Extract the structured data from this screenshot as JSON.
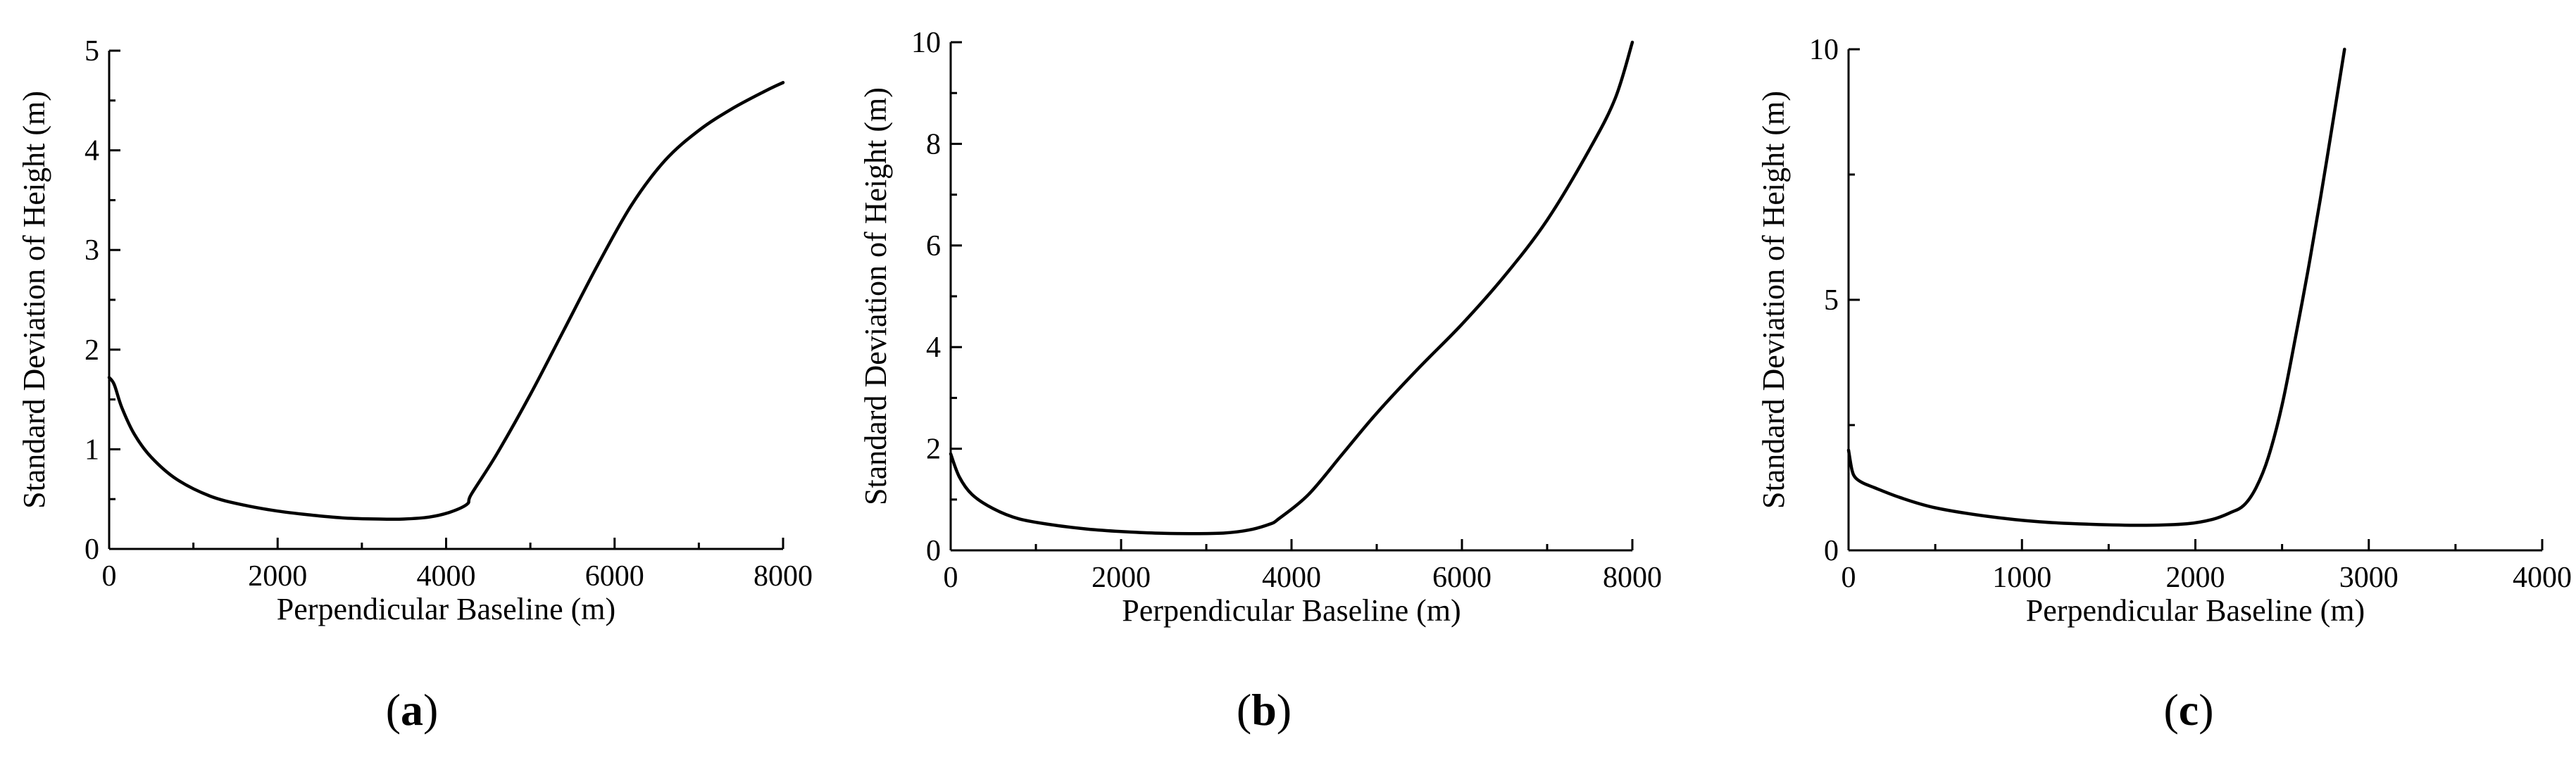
{
  "chart_data": [
    {
      "type": "line",
      "panel_label": "a",
      "xlabel": "Perpendicular Baseline (m)",
      "ylabel": "Standard Deviation of Height (m)",
      "xlim": [
        0,
        8000
      ],
      "ylim": [
        0,
        5
      ],
      "xticks": [
        0,
        2000,
        4000,
        6000,
        8000
      ],
      "yticks": [
        0,
        1,
        2,
        3,
        4,
        5
      ],
      "grid": false,
      "series": [
        {
          "x": [
            0,
            60,
            150,
            300,
            500,
            800,
            1200,
            1600,
            2000,
            2400,
            2800,
            3200,
            3500,
            3800,
            4050,
            4250,
            4300,
            4600,
            5000,
            5400,
            5800,
            6200,
            6600,
            7000,
            7400,
            7800,
            8000
          ],
          "y": [
            1.72,
            1.65,
            1.42,
            1.15,
            0.92,
            0.7,
            0.53,
            0.44,
            0.38,
            0.34,
            0.31,
            0.3,
            0.3,
            0.32,
            0.37,
            0.45,
            0.55,
            0.95,
            1.55,
            2.2,
            2.85,
            3.45,
            3.9,
            4.2,
            4.42,
            4.6,
            4.68
          ]
        }
      ]
    },
    {
      "type": "line",
      "panel_label": "b",
      "xlabel": "Perpendicular Baseline (m)",
      "ylabel": "Standard Deviation of Height (m)",
      "xlim": [
        0,
        8000
      ],
      "ylim": [
        0,
        10
      ],
      "xticks": [
        0,
        2000,
        4000,
        6000,
        8000
      ],
      "yticks": [
        0,
        2,
        4,
        6,
        8,
        10
      ],
      "grid": false,
      "series": [
        {
          "x": [
            0,
            100,
            250,
            500,
            800,
            1200,
            1600,
            2000,
            2400,
            2800,
            3200,
            3500,
            3750,
            3850,
            4200,
            4600,
            5000,
            5500,
            6000,
            6500,
            7000,
            7500,
            7800,
            8000
          ],
          "y": [
            1.9,
            1.45,
            1.1,
            0.82,
            0.62,
            0.5,
            0.42,
            0.37,
            0.34,
            0.33,
            0.34,
            0.4,
            0.52,
            0.62,
            1.1,
            1.9,
            2.7,
            3.6,
            4.45,
            5.4,
            6.5,
            7.9,
            8.9,
            10.0
          ]
        }
      ]
    },
    {
      "type": "line",
      "panel_label": "c",
      "xlabel": "Perpendicular Baseline (m)",
      "ylabel": "Standard Deviation of Height (m)",
      "xlim": [
        0,
        4000
      ],
      "ylim": [
        0,
        10
      ],
      "xticks": [
        0,
        1000,
        2000,
        3000,
        4000
      ],
      "yticks": [
        0,
        5,
        10
      ],
      "grid": false,
      "series": [
        {
          "x": [
            0,
            20,
            40,
            80,
            150,
            300,
            500,
            800,
            1100,
            1400,
            1700,
            1950,
            2100,
            2200,
            2280,
            2350,
            2420,
            2500,
            2580,
            2650,
            2720,
            2800,
            2860
          ],
          "y": [
            2.0,
            1.6,
            1.45,
            1.35,
            1.25,
            1.05,
            0.85,
            0.68,
            0.57,
            0.52,
            0.5,
            0.53,
            0.62,
            0.75,
            0.9,
            1.25,
            1.85,
            2.9,
            4.3,
            5.6,
            7.0,
            8.7,
            10.0
          ]
        }
      ]
    }
  ]
}
